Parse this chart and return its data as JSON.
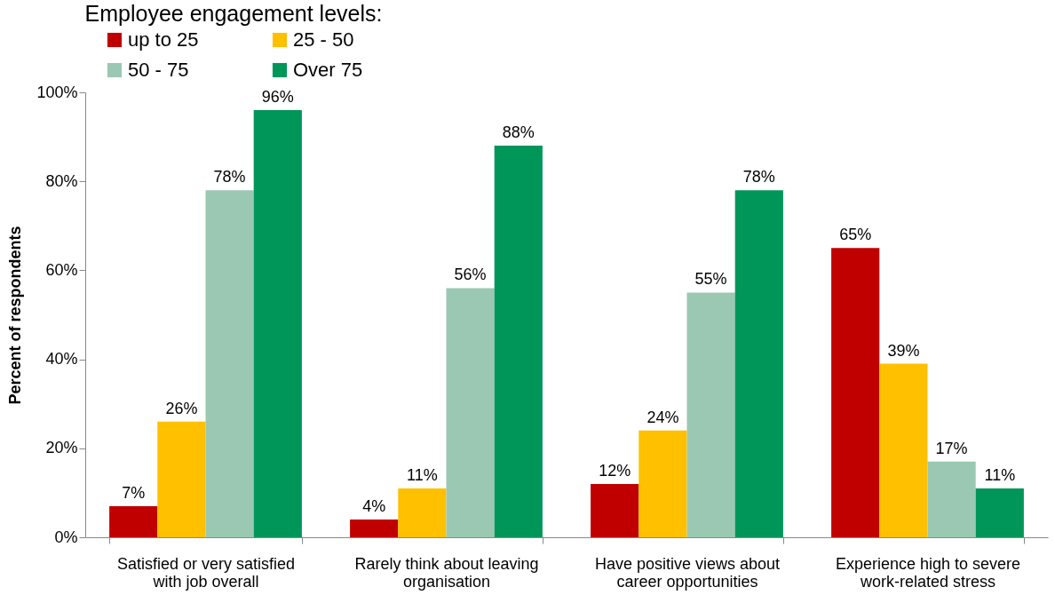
{
  "chart_data": {
    "type": "bar",
    "ylabel": "Percent of respondents",
    "legend_title": "Employee engagement levels:",
    "legend": "top",
    "categories": [
      "Satisfied or very satisfied with job overall",
      "Rarely think about leaving organisation",
      "Have positive views about career opportunities",
      "Experience high to severe work-related stress"
    ],
    "series": [
      {
        "name": "up to 25",
        "color": "#c00000",
        "values": [
          7,
          4,
          12,
          65
        ],
        "value_labels": [
          "7%",
          "4%",
          "12%",
          "65%"
        ]
      },
      {
        "name": "25 - 50",
        "color": "#ffc000",
        "values": [
          26,
          11,
          24,
          39
        ],
        "value_labels": [
          "26%",
          "11%",
          "24%",
          "39%"
        ]
      },
      {
        "name": "50 - 75",
        "color": "#9bc8b2",
        "values": [
          78,
          56,
          55,
          17
        ],
        "value_labels": [
          "78%",
          "56%",
          "55%",
          "17%"
        ]
      },
      {
        "name": "Over 75",
        "color": "#00965a",
        "values": [
          96,
          88,
          78,
          11
        ],
        "value_labels": [
          "96%",
          "88%",
          "78%",
          "11%"
        ]
      }
    ],
    "ylim": [
      0,
      100
    ],
    "yticks": [
      {
        "value": 0,
        "label": "0%"
      },
      {
        "value": 20,
        "label": "20%"
      },
      {
        "value": 40,
        "label": "40%"
      },
      {
        "value": 60,
        "label": "60%"
      },
      {
        "value": 80,
        "label": "80%"
      },
      {
        "value": 100,
        "label": "100%"
      }
    ],
    "grid": false
  }
}
